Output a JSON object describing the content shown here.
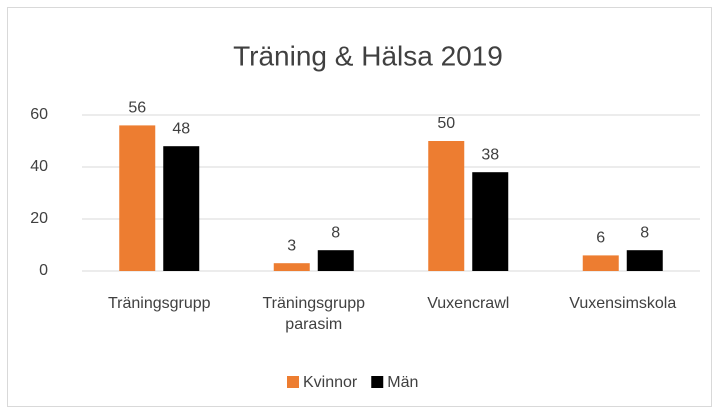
{
  "chart_data": {
    "type": "bar",
    "title": "Träning & Hälsa 2019",
    "categories": [
      "Träningsgrupp",
      "Träningsgrupp parasim",
      "Vuxencrawl",
      "Vuxensimskola"
    ],
    "series": [
      {
        "name": "Kvinnor",
        "color": "#ED7D31",
        "values": [
          56,
          3,
          50,
          6
        ]
      },
      {
        "name": "Män",
        "color": "#000000",
        "values": [
          48,
          8,
          38,
          8
        ]
      }
    ],
    "ylim": [
      0,
      60
    ],
    "yticks": [
      0,
      20,
      40,
      60
    ],
    "grid": true,
    "legend": "bottom"
  }
}
